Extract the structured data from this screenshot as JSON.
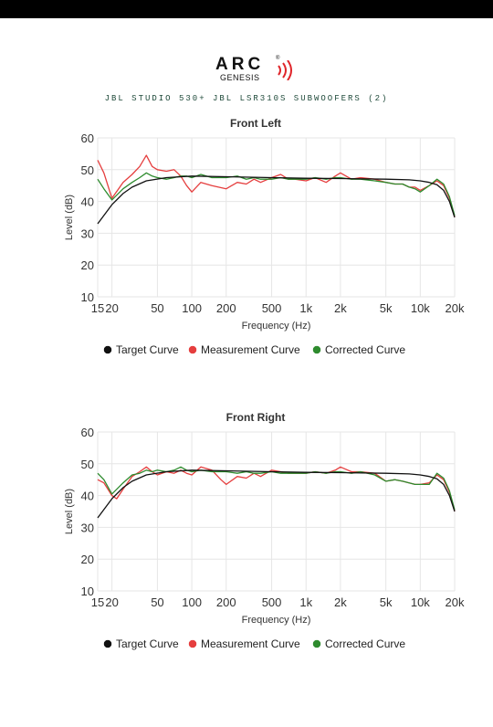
{
  "brand": {
    "logo_text": "ARC",
    "logo_sub": "GENESIS",
    "registered": "®"
  },
  "subtitle": "JBL STUDIO 530+ JBL LSR310S SUBWOOFERS (2)",
  "colors": {
    "target": "#111111",
    "measurement": "#e53e3e",
    "corrected": "#2e8b2e",
    "logo_accent": "#e0262b"
  },
  "chart_data": [
    {
      "type": "line",
      "title": "Front Left",
      "xlabel": "Frequency (Hz)",
      "ylabel": "Level (dB)",
      "xscale": "log",
      "xlim": [
        15,
        20000
      ],
      "ylim": [
        10,
        60
      ],
      "x_ticks": [
        15,
        20,
        50,
        100,
        200,
        500,
        1000,
        2000,
        5000,
        10000,
        20000
      ],
      "x_tick_labels": [
        "15",
        "20",
        "50",
        "100",
        "200",
        "500",
        "1k",
        "2k",
        "5k",
        "10k",
        "20k"
      ],
      "y_ticks": [
        10,
        20,
        30,
        40,
        50,
        60
      ],
      "grid": true,
      "legend": "bottom",
      "series": [
        {
          "name": "Target Curve",
          "color": "#111111",
          "x": [
            15,
            20,
            25,
            30,
            40,
            60,
            100,
            200,
            500,
            1000,
            2000,
            5000,
            8000,
            10000,
            12000,
            14000,
            16000,
            18000,
            20000
          ],
          "y": [
            33,
            39,
            42.5,
            44.5,
            46.5,
            47.5,
            48,
            47.8,
            47.5,
            47.3,
            47.2,
            47,
            46.8,
            46.5,
            46,
            45.3,
            43.5,
            40,
            35
          ]
        },
        {
          "name": "Measurement Curve",
          "color": "#e53e3e",
          "x": [
            15,
            17,
            20,
            25,
            30,
            35,
            40,
            45,
            50,
            60,
            70,
            80,
            90,
            100,
            120,
            150,
            200,
            250,
            300,
            350,
            400,
            500,
            600,
            700,
            800,
            1000,
            1200,
            1500,
            1800,
            2000,
            2500,
            3000,
            4000,
            5000,
            6000,
            7000,
            8000,
            9000,
            10000,
            12000,
            14000,
            16000,
            18000,
            20000
          ],
          "y": [
            53,
            49,
            41,
            46,
            48.5,
            51,
            54.5,
            51,
            50,
            49.5,
            50,
            48,
            45,
            43,
            46,
            45,
            44,
            46,
            45.5,
            47,
            46,
            47.5,
            48.5,
            47,
            47,
            46.5,
            47.5,
            46,
            48,
            49,
            47,
            47.5,
            47,
            46,
            45.5,
            45.5,
            44.5,
            44.5,
            43.5,
            45,
            46.5,
            45,
            41,
            35
          ]
        },
        {
          "name": "Corrected Curve",
          "color": "#2e8b2e",
          "x": [
            15,
            17,
            20,
            25,
            30,
            35,
            40,
            45,
            50,
            60,
            70,
            80,
            90,
            100,
            120,
            150,
            200,
            250,
            300,
            350,
            400,
            500,
            600,
            700,
            800,
            1000,
            1200,
            1500,
            1800,
            2000,
            2500,
            3000,
            4000,
            5000,
            6000,
            7000,
            8000,
            9000,
            10000,
            12000,
            14000,
            16000,
            18000,
            20000
          ],
          "y": [
            47,
            44,
            40.5,
            44,
            46,
            47.5,
            49,
            48,
            47.5,
            47,
            47.5,
            48,
            48,
            47.5,
            48.5,
            47.5,
            47.5,
            48,
            47,
            47.5,
            47,
            47,
            47.5,
            47,
            47,
            47,
            47.5,
            47,
            47.5,
            47.5,
            47,
            47,
            46.5,
            46,
            45.5,
            45.5,
            44.5,
            44,
            43,
            45,
            47,
            45.5,
            41.5,
            35.5
          ]
        }
      ]
    },
    {
      "type": "line",
      "title": "Front Right",
      "xlabel": "Frequency (Hz)",
      "ylabel": "Level (dB)",
      "xscale": "log",
      "xlim": [
        15,
        20000
      ],
      "ylim": [
        10,
        60
      ],
      "x_ticks": [
        15,
        20,
        50,
        100,
        200,
        500,
        1000,
        2000,
        5000,
        10000,
        20000
      ],
      "x_tick_labels": [
        "15",
        "20",
        "50",
        "100",
        "200",
        "500",
        "1k",
        "2k",
        "5k",
        "10k",
        "20k"
      ],
      "y_ticks": [
        10,
        20,
        30,
        40,
        50,
        60
      ],
      "grid": true,
      "legend": "bottom",
      "series": [
        {
          "name": "Target Curve",
          "color": "#111111",
          "x": [
            15,
            20,
            25,
            30,
            40,
            60,
            100,
            200,
            500,
            1000,
            2000,
            5000,
            8000,
            10000,
            12000,
            14000,
            16000,
            18000,
            20000
          ],
          "y": [
            33,
            39,
            42.5,
            44.5,
            46.5,
            47.5,
            48,
            47.8,
            47.5,
            47.3,
            47.2,
            47,
            46.8,
            46.5,
            46,
            45.3,
            43.5,
            40,
            35
          ]
        },
        {
          "name": "Measurement Curve",
          "color": "#e53e3e",
          "x": [
            15,
            17,
            20,
            22,
            25,
            30,
            35,
            40,
            45,
            50,
            60,
            70,
            80,
            90,
            100,
            120,
            150,
            180,
            200,
            250,
            300,
            350,
            400,
            500,
            600,
            700,
            800,
            1000,
            1200,
            1500,
            1800,
            2000,
            2500,
            3000,
            4000,
            5000,
            6000,
            7000,
            8000,
            9000,
            10000,
            12000,
            14000,
            16000,
            18000,
            20000
          ],
          "y": [
            45,
            44,
            40,
            39,
            42,
            46,
            47.5,
            49,
            47.5,
            46.5,
            47.5,
            47,
            48,
            47,
            46.5,
            49,
            48,
            45,
            43.5,
            46,
            45.5,
            47,
            46,
            48,
            47.5,
            47,
            47,
            47,
            47.5,
            47,
            48,
            49,
            47.5,
            47.5,
            47,
            44.5,
            45,
            44.5,
            44,
            43.5,
            43.5,
            44,
            46.5,
            45,
            41,
            35
          ]
        },
        {
          "name": "Corrected Curve",
          "color": "#2e8b2e",
          "x": [
            15,
            17,
            20,
            25,
            30,
            35,
            40,
            45,
            50,
            60,
            70,
            80,
            90,
            100,
            120,
            150,
            200,
            250,
            300,
            350,
            400,
            500,
            600,
            700,
            800,
            1000,
            1200,
            1500,
            1800,
            2000,
            2500,
            3000,
            4000,
            5000,
            6000,
            7000,
            8000,
            9000,
            10000,
            12000,
            14000,
            16000,
            18000,
            20000
          ],
          "y": [
            47,
            45,
            40.5,
            44,
            46.5,
            47,
            48,
            47.5,
            48,
            47.5,
            48,
            49,
            48,
            47.5,
            48,
            47.5,
            47.5,
            47,
            47.5,
            47,
            47,
            47.5,
            47,
            47,
            47,
            47,
            47.5,
            47,
            47.5,
            47.5,
            47,
            47.5,
            46.5,
            44.5,
            45,
            44.5,
            44,
            43.5,
            43.5,
            43.5,
            47,
            45.5,
            41.5,
            35.5
          ]
        }
      ]
    }
  ]
}
